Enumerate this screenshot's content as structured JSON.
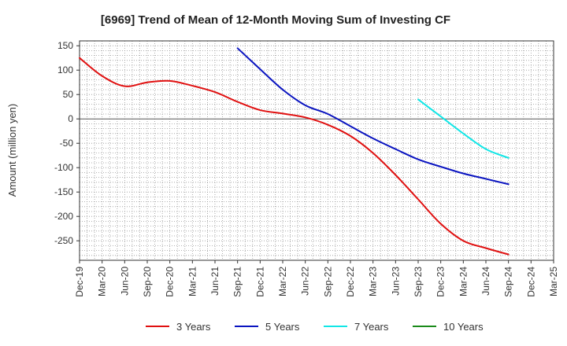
{
  "chart_data": {
    "type": "line",
    "title": "[6969]  Trend of Mean of 12-Month Moving Sum of Investing CF",
    "xlabel": "",
    "ylabel": "Amount (million yen)",
    "ylim": [
      -290,
      160
    ],
    "yticks": [
      150,
      100,
      50,
      0,
      -50,
      -100,
      -150,
      -200,
      -250
    ],
    "grid": true,
    "legend_position": "bottom",
    "categories": [
      "Dec-19",
      "Mar-20",
      "Jun-20",
      "Sep-20",
      "Dec-20",
      "Mar-21",
      "Jun-21",
      "Sep-21",
      "Dec-21",
      "Mar-22",
      "Jun-22",
      "Sep-22",
      "Dec-22",
      "Mar-23",
      "Jun-23",
      "Sep-23",
      "Dec-23",
      "Mar-24",
      "Jun-24",
      "Sep-24",
      "Dec-24",
      "Mar-25"
    ],
    "series": [
      {
        "name": "3 Years",
        "color": "#e01010",
        "values": [
          125,
          88,
          67,
          75,
          78,
          68,
          55,
          35,
          18,
          11,
          3,
          -12,
          -35,
          -70,
          -115,
          -165,
          -215,
          -250,
          -265,
          -278,
          null,
          null
        ]
      },
      {
        "name": "5 Years",
        "color": "#0a14c0",
        "values": [
          null,
          null,
          null,
          null,
          null,
          null,
          null,
          145,
          102,
          60,
          28,
          10,
          -15,
          -40,
          -62,
          -83,
          -98,
          -112,
          -123,
          -134,
          null,
          null
        ]
      },
      {
        "name": "7 Years",
        "color": "#12e6e6",
        "values": [
          null,
          null,
          null,
          null,
          null,
          null,
          null,
          null,
          null,
          null,
          null,
          null,
          null,
          null,
          null,
          40,
          5,
          -30,
          -62,
          -80,
          null,
          null
        ]
      },
      {
        "name": "10 Years",
        "color": "#1a8a1a",
        "values": [
          null,
          null,
          null,
          null,
          null,
          null,
          null,
          null,
          null,
          null,
          null,
          null,
          null,
          null,
          null,
          null,
          null,
          null,
          null,
          null,
          null,
          null
        ]
      }
    ]
  }
}
